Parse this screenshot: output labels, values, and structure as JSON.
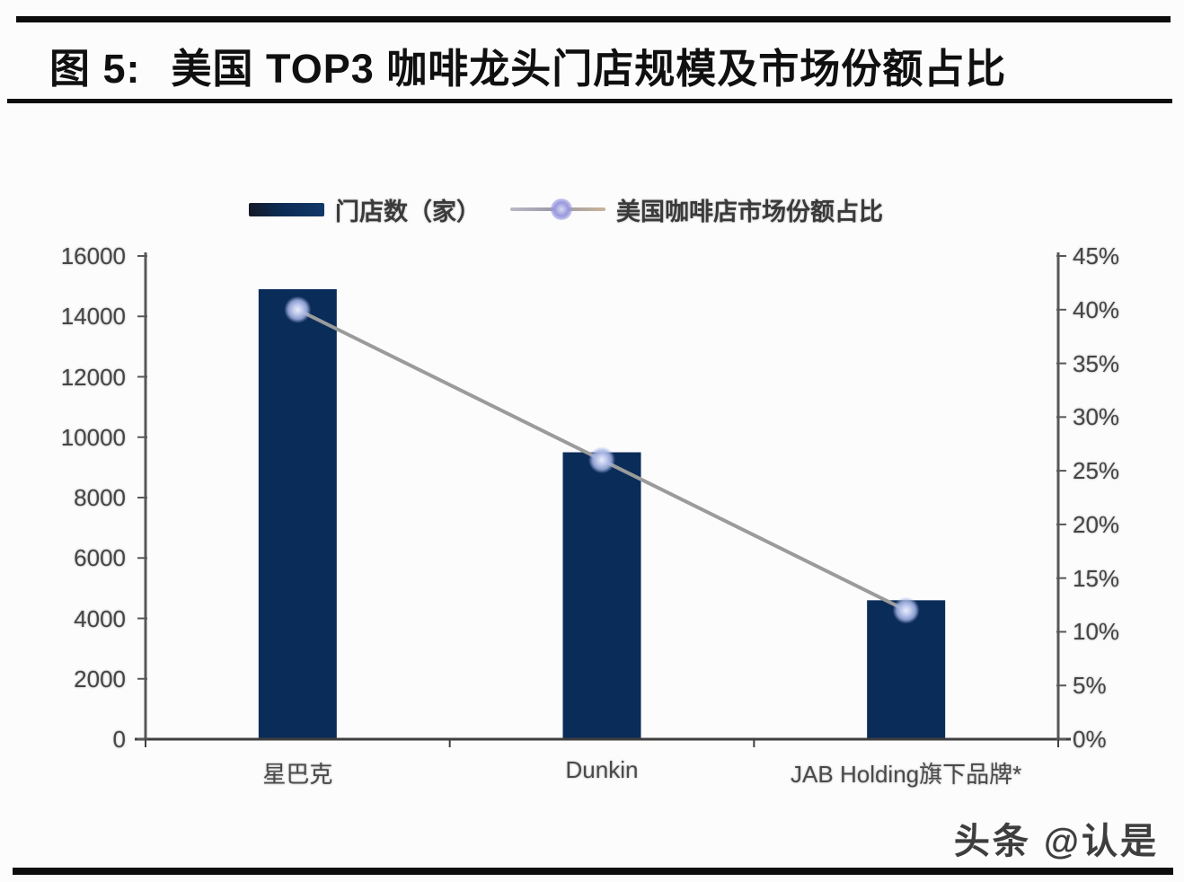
{
  "header": {
    "figure_label": "图 5:",
    "title": "美国 TOP3 咖啡龙头门店规模及市场份额占比"
  },
  "watermark": "头条 @认是",
  "colors": {
    "bar": "#0a2c59",
    "line": "#9b9b9b",
    "marker": "#b3c0e6",
    "axis": "#585858",
    "baseline": "#3f3f3f",
    "header_rule": "#0d0d0d"
  },
  "chart_data": {
    "type": "bar",
    "subtype": "bar-line-combo",
    "title": "美国 TOP3 咖啡龙头门店规模及市场份额占比",
    "categories": [
      "星巴克",
      "Dunkin",
      "JAB Holding旗下品牌*"
    ],
    "series": [
      {
        "name": "门店数（家）",
        "chart_type": "bar",
        "axis": "left",
        "values": [
          14900,
          9500,
          4600
        ]
      },
      {
        "name": "美国咖啡店市场份额占比",
        "chart_type": "line",
        "axis": "right",
        "unit": "%",
        "values": [
          40,
          26,
          12
        ]
      }
    ],
    "left_axis": {
      "min": 0,
      "max": 16000,
      "step": 2000,
      "tick_labels": [
        "16000",
        "14000",
        "12000",
        "10000",
        "8000",
        "6000",
        "4000",
        "2000",
        "0"
      ]
    },
    "right_axis": {
      "min": 0,
      "max": 45,
      "step": 5,
      "tick_labels": [
        "45%",
        "40%",
        "35%",
        "30%",
        "25%",
        "20%",
        "15%",
        "10%",
        "5%",
        "0%"
      ]
    },
    "grid": false,
    "legend_position": "top"
  }
}
